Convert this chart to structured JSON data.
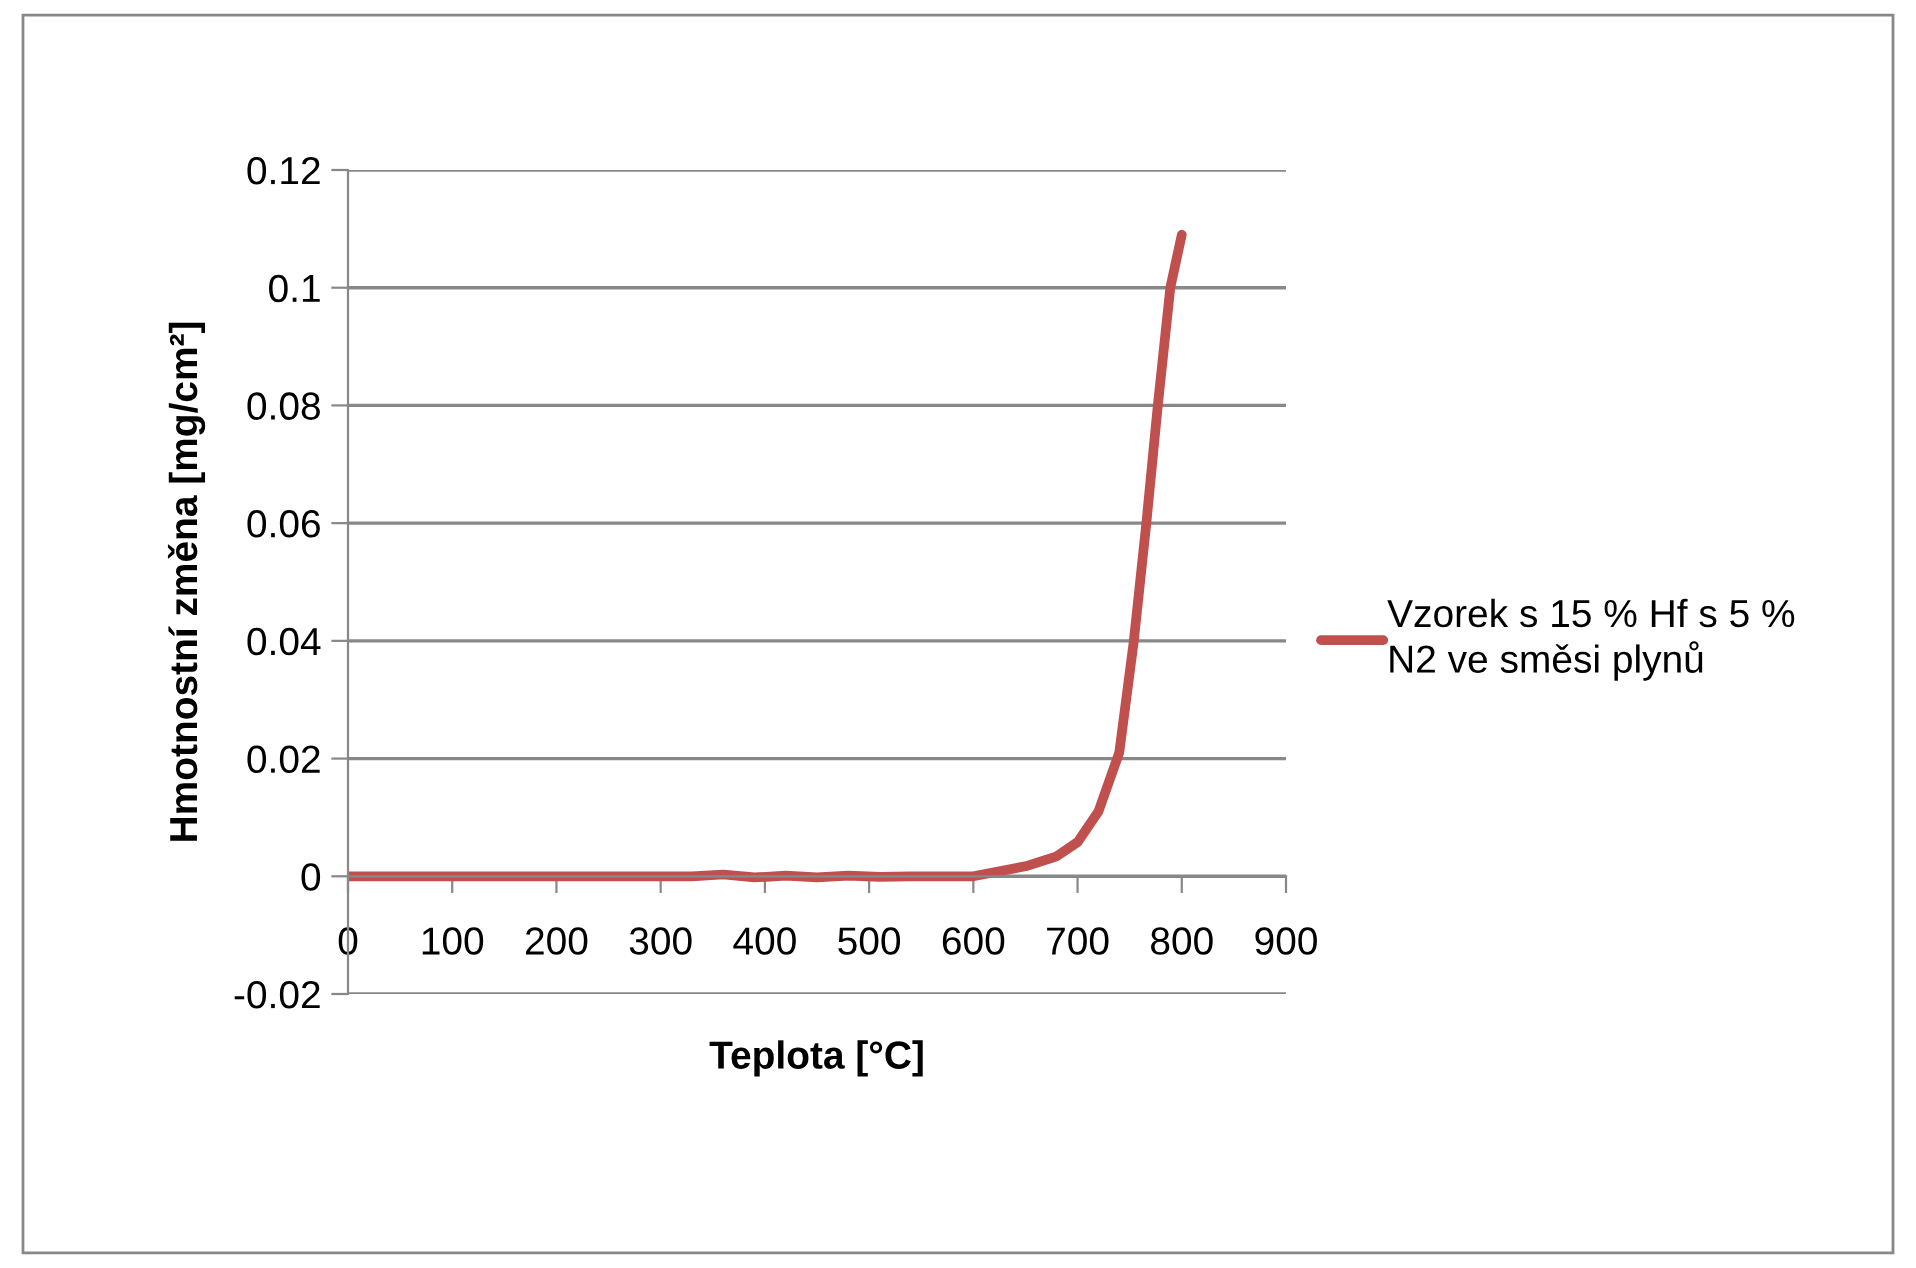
{
  "chart_data": {
    "type": "line",
    "xlabel": "Teplota [°C]",
    "ylabel": "Hmotnostní změna [mg/cm²]",
    "xlim": [
      0,
      900
    ],
    "xticks": [
      0,
      100,
      200,
      300,
      400,
      500,
      600,
      700,
      800,
      900
    ],
    "ylim": [
      -0.02,
      0.12
    ],
    "yticks": [
      -0.02,
      0,
      0.02,
      0.04,
      0.06,
      0.08,
      0.1,
      0.12
    ],
    "grid": "y",
    "legend": "right",
    "marker": "none",
    "line_style": "solid",
    "series": [
      {
        "name": "Vzorek s 15 % Hf s 5 %\nN2 ve směsi plynů",
        "color": "#c0504d",
        "x": [
          0,
          100,
          200,
          300,
          330,
          360,
          390,
          420,
          450,
          480,
          510,
          540,
          570,
          600,
          620,
          650,
          680,
          700,
          720,
          730,
          740,
          754,
          766,
          777,
          789,
          800
        ],
        "values": [
          0,
          0,
          0,
          0,
          0,
          0.0003,
          -0.0002,
          0.0001,
          -0.0002,
          0.0001,
          -0.0001,
          0,
          0,
          0,
          0.0007,
          0.0017,
          0.0034,
          0.0058,
          0.011,
          0.016,
          0.021,
          0.04,
          0.06,
          0.08,
          0.1,
          0.109
        ]
      }
    ]
  }
}
